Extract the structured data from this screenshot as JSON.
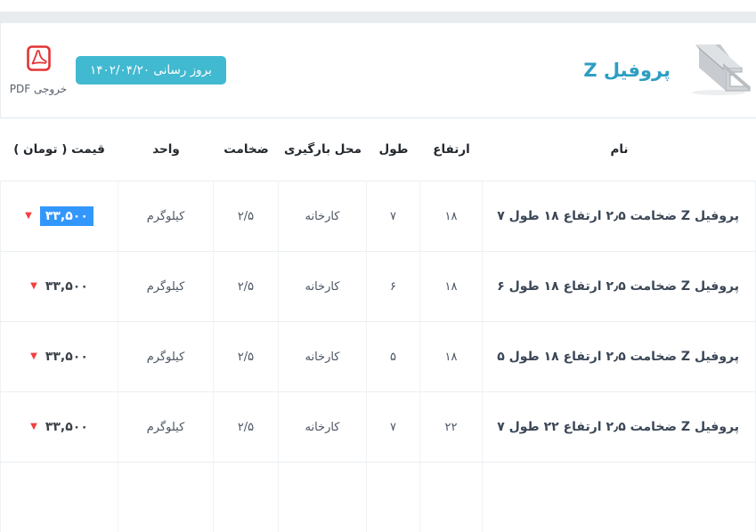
{
  "page": {
    "top_strip_color": "#e8ecef"
  },
  "header": {
    "title": "پروفیل Z",
    "update_badge_label": "بروز رسانی ۱۴۰۲/۰۴/۲۰",
    "pdf_export_label": "خروجی PDF",
    "accent_color": "#41b9d0",
    "title_color": "#2d9ec3",
    "pdf_icon_color": "#e23434",
    "product_image": "z-profile-steel-bar"
  },
  "table": {
    "columns": [
      {
        "key": "name",
        "label": "نام"
      },
      {
        "key": "height",
        "label": "ارتفاع"
      },
      {
        "key": "length",
        "label": "طول"
      },
      {
        "key": "loading",
        "label": "محل بارگیری"
      },
      {
        "key": "thickness",
        "label": "ضخامت"
      },
      {
        "key": "unit",
        "label": "واحد"
      },
      {
        "key": "price",
        "label": "قیمت ( تومان )"
      }
    ],
    "rows": [
      {
        "name": "پروفیل Z ضخامت ۲٫۵ ارتفاع ۱۸ طول ۷",
        "height": "۱۸",
        "length": "۷",
        "loading": "کارخانه",
        "thickness": "۲/۵",
        "unit": "کیلوگرم",
        "price": "۳۳,۵۰۰",
        "price_selected": true,
        "trend": "down"
      },
      {
        "name": "پروفیل Z ضخامت ۲٫۵ ارتفاع ۱۸ طول ۶",
        "height": "۱۸",
        "length": "۶",
        "loading": "کارخانه",
        "thickness": "۲/۵",
        "unit": "کیلوگرم",
        "price": "۳۳,۵۰۰",
        "price_selected": false,
        "trend": "down"
      },
      {
        "name": "پروفیل Z ضخامت ۲٫۵ ارتفاع ۱۸ طول ۵",
        "height": "۱۸",
        "length": "۵",
        "loading": "کارخانه",
        "thickness": "۲/۵",
        "unit": "کیلوگرم",
        "price": "۳۳,۵۰۰",
        "price_selected": false,
        "trend": "down"
      },
      {
        "name": "پروفیل Z ضخامت ۲٫۵ ارتفاع ۲۲ طول ۷",
        "height": "۲۲",
        "length": "۷",
        "loading": "کارخانه",
        "thickness": "۲/۵",
        "unit": "کیلوگرم",
        "price": "۳۳,۵۰۰",
        "price_selected": false,
        "trend": "down"
      },
      {
        "name": "",
        "height": "",
        "length": "",
        "loading": "",
        "thickness": "",
        "unit": "",
        "price": "",
        "price_selected": false,
        "trend": ""
      }
    ],
    "trend_down_glyph": "▼",
    "price_selection_color": "#3297fd",
    "trend_down_color": "#f43f3f"
  }
}
